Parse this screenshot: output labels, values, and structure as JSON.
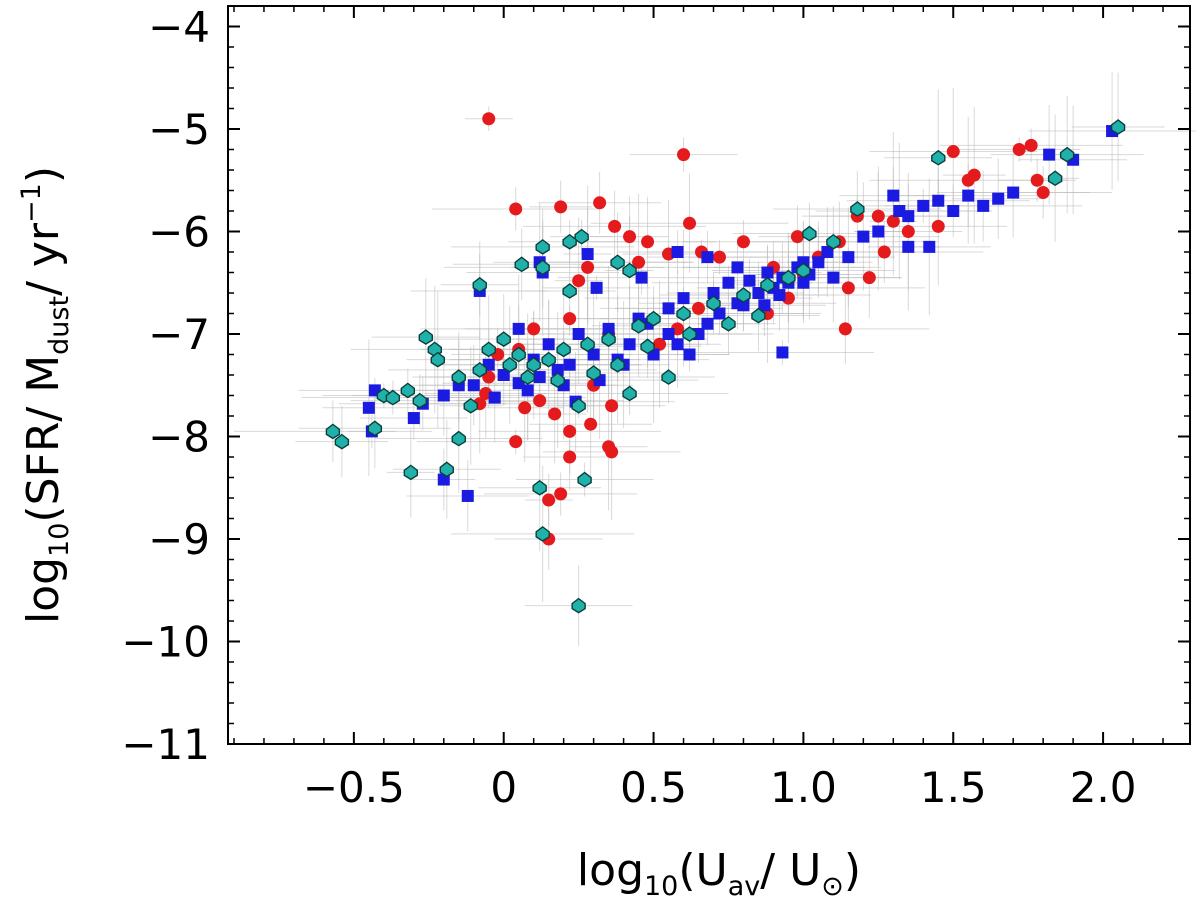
{
  "chart_data": {
    "type": "scatter",
    "title": "",
    "xlabel": {
      "prefix": "log",
      "prefix_sub": "10",
      "open": "(U",
      "sub1": "av",
      "mid": "/ U",
      "sub2": "⊙",
      "close": ")"
    },
    "ylabel": {
      "prefix": "log",
      "prefix_sub": "10",
      "open": "(SFR/ M",
      "sub1": "dust",
      "mid": "/ yr",
      "sup": "−1",
      "close": ")"
    },
    "xlim": [
      -0.92,
      2.29
    ],
    "ylim": [
      -11,
      -3.8
    ],
    "xticks": [
      {
        "value": -0.5,
        "label": "−0.5"
      },
      {
        "value": 0,
        "label": "0"
      },
      {
        "value": 0.5,
        "label": "0.5"
      },
      {
        "value": 1.0,
        "label": "1.0"
      },
      {
        "value": 1.5,
        "label": "1.5"
      },
      {
        "value": 2.0,
        "label": "2.0"
      }
    ],
    "yticks": [
      {
        "value": -11,
        "label": "−11"
      },
      {
        "value": -10,
        "label": "−10"
      },
      {
        "value": -9,
        "label": "−9"
      },
      {
        "value": -8,
        "label": "−8"
      },
      {
        "value": -7,
        "label": "−7"
      },
      {
        "value": -6,
        "label": "−6"
      },
      {
        "value": -5,
        "label": "−5"
      },
      {
        "value": -4,
        "label": "−4"
      }
    ],
    "grid": false,
    "series": [
      {
        "name": "red",
        "marker": "circle",
        "color": "#e41a1c",
        "points": [
          [
            -0.05,
            -4.9
          ],
          [
            0.6,
            -5.25
          ],
          [
            0.04,
            -5.78
          ],
          [
            0.19,
            -5.76
          ],
          [
            0.32,
            -5.72
          ],
          [
            0.37,
            -5.95
          ],
          [
            0.42,
            -6.05
          ],
          [
            0.48,
            -6.1
          ],
          [
            0.62,
            -5.92
          ],
          [
            0.55,
            -6.22
          ],
          [
            0.28,
            -6.35
          ],
          [
            0.25,
            -6.48
          ],
          [
            0.45,
            -6.3
          ],
          [
            0.66,
            -6.2
          ],
          [
            0.72,
            -6.25
          ],
          [
            0.8,
            -6.1
          ],
          [
            0.9,
            -6.35
          ],
          [
            0.98,
            -6.05
          ],
          [
            1.05,
            -6.25
          ],
          [
            1.12,
            -6.1
          ],
          [
            1.18,
            -5.85
          ],
          [
            1.25,
            -5.85
          ],
          [
            1.3,
            -5.9
          ],
          [
            1.35,
            -6.0
          ],
          [
            1.5,
            -5.22
          ],
          [
            1.57,
            -5.45
          ],
          [
            1.72,
            -5.2
          ],
          [
            1.76,
            -5.16
          ],
          [
            1.78,
            -5.5
          ],
          [
            1.8,
            -5.62
          ],
          [
            1.27,
            -6.2
          ],
          [
            1.0,
            -6.42
          ],
          [
            1.15,
            -6.55
          ],
          [
            0.95,
            -6.65
          ],
          [
            0.88,
            -6.8
          ],
          [
            0.65,
            -6.75
          ],
          [
            0.58,
            -6.95
          ],
          [
            0.52,
            -7.1
          ],
          [
            0.35,
            -7.0
          ],
          [
            0.22,
            -6.85
          ],
          [
            0.1,
            -6.95
          ],
          [
            0.05,
            -7.15
          ],
          [
            -0.02,
            -7.2
          ],
          [
            -0.05,
            -7.42
          ],
          [
            0.3,
            -7.5
          ],
          [
            0.36,
            -7.7
          ],
          [
            0.12,
            -7.65
          ],
          [
            0.17,
            -7.78
          ],
          [
            0.29,
            -7.88
          ],
          [
            0.22,
            -7.95
          ],
          [
            0.35,
            -8.1
          ],
          [
            0.36,
            -8.15
          ],
          [
            0.04,
            -8.05
          ],
          [
            0.22,
            -8.2
          ],
          [
            0.19,
            -8.56
          ],
          [
            0.15,
            -8.62
          ],
          [
            0.15,
            -9.0
          ],
          [
            1.14,
            -6.95
          ],
          [
            1.22,
            -6.45
          ],
          [
            -0.06,
            -7.58
          ],
          [
            -0.08,
            -7.68
          ],
          [
            0.07,
            -7.72
          ],
          [
            1.45,
            -5.95
          ],
          [
            1.55,
            -5.5
          ]
        ]
      },
      {
        "name": "blue",
        "marker": "square",
        "color": "#1a1ae0",
        "points": [
          [
            -0.45,
            -7.72
          ],
          [
            -0.43,
            -7.55
          ],
          [
            -0.44,
            -7.95
          ],
          [
            -0.3,
            -7.82
          ],
          [
            -0.27,
            -7.68
          ],
          [
            -0.2,
            -8.42
          ],
          [
            -0.12,
            -8.58
          ],
          [
            -0.2,
            -7.6
          ],
          [
            -0.15,
            -7.5
          ],
          [
            -0.08,
            -6.58
          ],
          [
            0.05,
            -6.95
          ],
          [
            0.12,
            -6.3
          ],
          [
            0.13,
            -6.4
          ],
          [
            0.28,
            -6.22
          ],
          [
            0.31,
            -6.55
          ],
          [
            0.46,
            -6.45
          ],
          [
            0.58,
            -6.2
          ],
          [
            0.68,
            -6.25
          ],
          [
            0.78,
            -6.35
          ],
          [
            0.93,
            -6.45
          ],
          [
            1.0,
            -6.3
          ],
          [
            1.08,
            -6.2
          ],
          [
            1.15,
            -6.25
          ],
          [
            1.2,
            -6.05
          ],
          [
            1.25,
            -6.0
          ],
          [
            1.3,
            -5.65
          ],
          [
            1.32,
            -5.8
          ],
          [
            1.35,
            -5.85
          ],
          [
            1.4,
            -5.75
          ],
          [
            1.45,
            -5.7
          ],
          [
            1.5,
            -5.8
          ],
          [
            1.55,
            -5.65
          ],
          [
            1.6,
            -5.75
          ],
          [
            1.65,
            -5.68
          ],
          [
            1.7,
            -5.62
          ],
          [
            1.82,
            -5.25
          ],
          [
            1.9,
            -5.3
          ],
          [
            2.03,
            -5.02
          ],
          [
            1.35,
            -6.15
          ],
          [
            1.42,
            -6.15
          ],
          [
            0.93,
            -7.18
          ],
          [
            0.62,
            -7.2
          ],
          [
            0.68,
            -6.9
          ],
          [
            0.78,
            -6.7
          ],
          [
            0.85,
            -6.6
          ],
          [
            0.9,
            -6.55
          ],
          [
            0.95,
            -6.5
          ],
          [
            1.02,
            -6.42
          ],
          [
            0.55,
            -7.0
          ],
          [
            0.48,
            -6.9
          ],
          [
            0.42,
            -7.1
          ],
          [
            0.38,
            -7.25
          ],
          [
            0.3,
            -7.2
          ],
          [
            0.22,
            -7.3
          ],
          [
            0.18,
            -7.35
          ],
          [
            0.12,
            -7.42
          ],
          [
            0.05,
            -7.48
          ],
          [
            0.0,
            -7.4
          ],
          [
            -0.05,
            -7.3
          ],
          [
            0.1,
            -7.25
          ],
          [
            0.15,
            -7.1
          ],
          [
            0.25,
            -7.0
          ],
          [
            0.35,
            -6.95
          ],
          [
            0.45,
            -6.85
          ],
          [
            0.55,
            -6.75
          ],
          [
            0.6,
            -6.65
          ],
          [
            0.7,
            -6.6
          ],
          [
            0.75,
            -6.5
          ],
          [
            0.82,
            -6.48
          ],
          [
            0.88,
            -6.4
          ],
          [
            0.98,
            -6.35
          ],
          [
            1.05,
            -6.3
          ],
          [
            -0.1,
            -7.5
          ],
          [
            -0.03,
            -7.62
          ],
          [
            0.08,
            -7.55
          ],
          [
            0.2,
            -7.5
          ],
          [
            0.32,
            -7.45
          ],
          [
            0.4,
            -7.3
          ],
          [
            0.5,
            -7.2
          ],
          [
            0.58,
            -7.1
          ],
          [
            0.65,
            -7.0
          ],
          [
            0.72,
            -6.8
          ],
          [
            0.8,
            -6.72
          ],
          [
            0.87,
            -6.72
          ],
          [
            0.92,
            -6.62
          ],
          [
            1.0,
            -6.5
          ],
          [
            1.1,
            -6.45
          ],
          [
            0.24,
            -7.66
          ]
        ]
      },
      {
        "name": "teal",
        "marker": "diamond-outlined",
        "color": "#20b2aa",
        "points": [
          [
            2.05,
            -4.98
          ],
          [
            1.88,
            -5.25
          ],
          [
            1.84,
            -5.48
          ],
          [
            1.45,
            -5.28
          ],
          [
            1.18,
            -5.78
          ],
          [
            0.26,
            -6.05
          ],
          [
            0.22,
            -6.1
          ],
          [
            0.13,
            -6.15
          ],
          [
            -0.08,
            -6.52
          ],
          [
            0.06,
            -6.32
          ],
          [
            0.13,
            -6.35
          ],
          [
            0.22,
            -6.58
          ],
          [
            0.38,
            -6.3
          ],
          [
            0.42,
            -6.38
          ],
          [
            -0.26,
            -7.03
          ],
          [
            -0.23,
            -7.15
          ],
          [
            -0.22,
            -7.25
          ],
          [
            -0.4,
            -7.6
          ],
          [
            -0.37,
            -7.62
          ],
          [
            -0.32,
            -7.55
          ],
          [
            -0.28,
            -7.65
          ],
          [
            -0.57,
            -7.95
          ],
          [
            -0.54,
            -8.05
          ],
          [
            -0.43,
            -7.92
          ],
          [
            -0.31,
            -8.35
          ],
          [
            -0.19,
            -8.32
          ],
          [
            -0.15,
            -8.02
          ],
          [
            -0.11,
            -7.7
          ],
          [
            0.12,
            -8.5
          ],
          [
            0.13,
            -8.95
          ],
          [
            0.25,
            -7.7
          ],
          [
            0.27,
            -8.42
          ],
          [
            0.42,
            -7.58
          ],
          [
            0.55,
            -7.42
          ],
          [
            1.02,
            -6.02
          ],
          [
            1.1,
            -6.1
          ],
          [
            0.25,
            -9.65
          ],
          [
            0.0,
            -7.05
          ],
          [
            0.05,
            -7.2
          ],
          [
            0.1,
            -7.3
          ],
          [
            0.15,
            -7.25
          ],
          [
            0.2,
            -7.15
          ],
          [
            0.28,
            -7.1
          ],
          [
            0.35,
            -7.05
          ],
          [
            0.45,
            -6.92
          ],
          [
            0.5,
            -6.85
          ],
          [
            0.6,
            -6.8
          ],
          [
            0.7,
            -6.7
          ],
          [
            0.8,
            -6.62
          ],
          [
            0.88,
            -6.52
          ],
          [
            0.95,
            -6.45
          ],
          [
            1.0,
            -6.38
          ],
          [
            -0.05,
            -7.15
          ],
          [
            0.02,
            -7.3
          ],
          [
            0.08,
            -7.42
          ],
          [
            0.18,
            -7.45
          ],
          [
            0.3,
            -7.38
          ],
          [
            0.38,
            -7.3
          ],
          [
            0.48,
            -7.12
          ],
          [
            0.62,
            -7.0
          ],
          [
            0.75,
            -6.9
          ],
          [
            0.85,
            -6.82
          ],
          [
            -0.08,
            -7.35
          ],
          [
            -0.15,
            -7.42
          ]
        ]
      }
    ]
  }
}
